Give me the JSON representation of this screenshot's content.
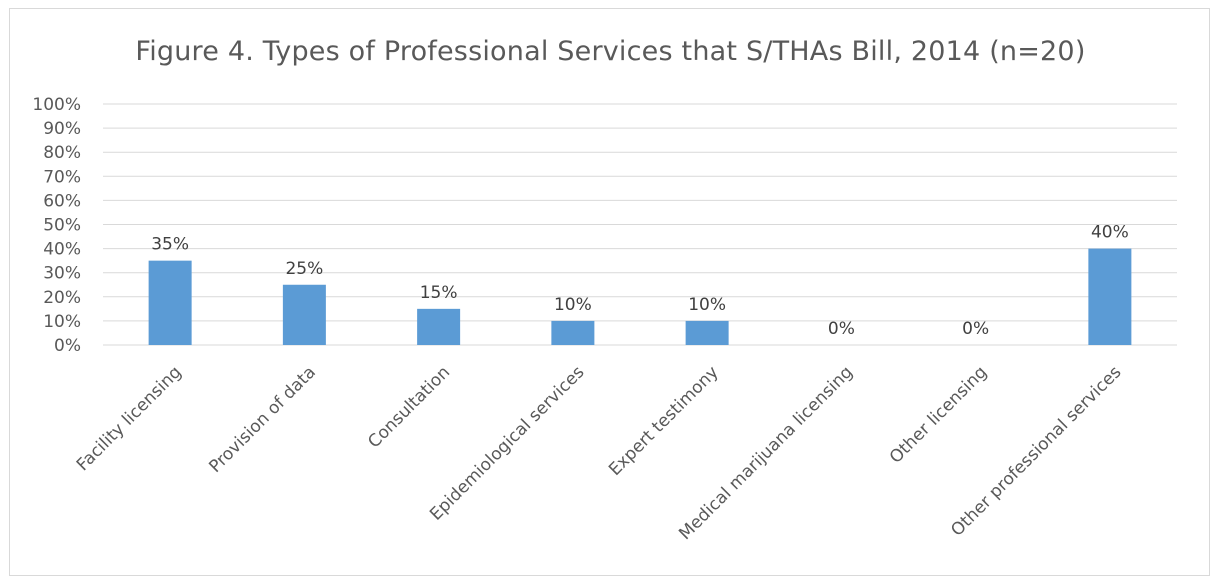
{
  "chart_data": {
    "type": "bar",
    "title": "Figure 4. Types of Professional Services that S/THAs Bill, 2014 (n=20)",
    "categories": [
      "Facility licensing",
      "Provision of data",
      "Consultation",
      "Epidemiological services",
      "Expert testimony",
      "Medical marijuana licensing",
      "Other licensing",
      "Other professional services"
    ],
    "values": [
      35,
      25,
      15,
      10,
      10,
      0,
      0,
      40
    ],
    "data_labels": [
      "35%",
      "25%",
      "15%",
      "10%",
      "10%",
      "0%",
      "0%",
      "40%"
    ],
    "y_ticks": [
      "0%",
      "10%",
      "20%",
      "30%",
      "40%",
      "50%",
      "60%",
      "70%",
      "80%",
      "90%",
      "100%"
    ],
    "ylim": [
      0,
      100
    ],
    "grid": true,
    "legend": "none",
    "bar_color": "#5b9bd5"
  }
}
